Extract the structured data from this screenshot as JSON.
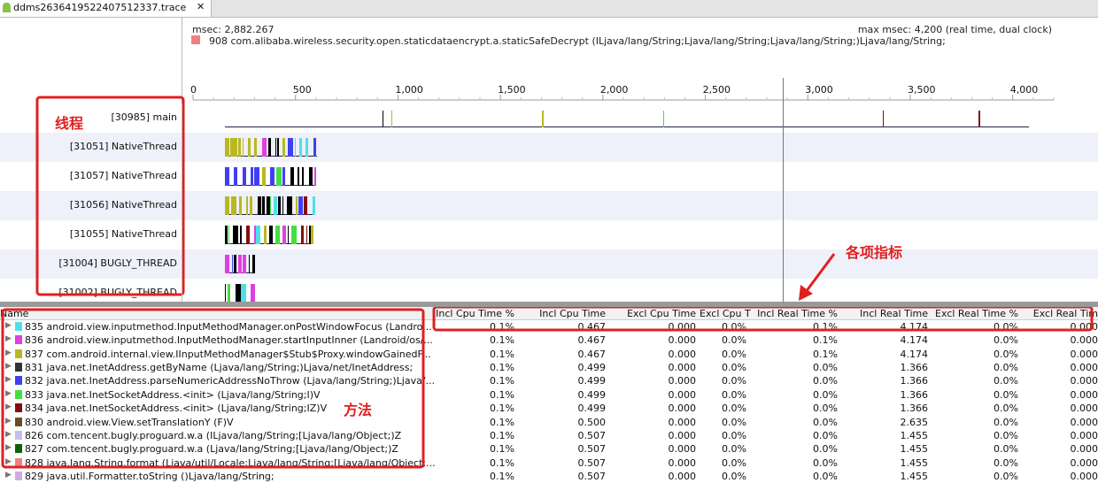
{
  "tab": {
    "title": "ddms2636419522407512337.trace"
  },
  "header": {
    "msec": "msec: 2,882.267",
    "max_msec": "max msec: 4,200 (real time, dual clock)",
    "selected_method": "908 com.alibaba.wireless.security.open.staticdataencrypt.a.staticSafeDecrypt (ILjava/lang/String;Ljava/lang/String;Ljava/lang/String;)Ljava/lang/String;",
    "selected_color": "#f08080"
  },
  "timeline": {
    "range": [
      0,
      4200
    ],
    "ticks": [
      0,
      500,
      {
        "value": 1000,
        "label": "1,000"
      },
      {
        "value": 1500,
        "label": "1,500"
      },
      {
        "value": 2000,
        "label": "2,000"
      },
      {
        "value": 2500,
        "label": "2,500"
      },
      {
        "value": 3000,
        "label": "3,000"
      },
      {
        "value": 3500,
        "label": "3,500"
      },
      {
        "value": 4000,
        "label": "4,000"
      }
    ]
  },
  "threads": [
    "[30985] main",
    "[31051] NativeThread",
    "[31057] NativeThread",
    "[31056] NativeThread",
    "[31055] NativeThread",
    "[31004] BUGLY_THREAD",
    "[31002] BUGLY_THREAD"
  ],
  "annotations": {
    "threads": "线程",
    "columns": "各项指标",
    "methods": "方法"
  },
  "table": {
    "columns": [
      "Name",
      "Incl Cpu Time %",
      "Incl Cpu Time",
      "Excl Cpu Time",
      "Excl Cpu T",
      "Incl Real Time %",
      "Incl Real Time",
      "Excl Real Time %",
      "Excl Real Tim"
    ],
    "rows": [
      {
        "color": "#4ee0e8",
        "cells": [
          "835 android.view.inputmethod.InputMethodManager.onPostWindowFocus (Landro...",
          "0.1%",
          "0.467",
          "0.000",
          "0.0%",
          "0.1%",
          "4.174",
          "0.0%",
          "0.000"
        ]
      },
      {
        "color": "#e040e0",
        "cells": [
          "836 android.view.inputmethod.InputMethodManager.startInputInner (Landroid/os/...",
          "0.1%",
          "0.467",
          "0.000",
          "0.0%",
          "0.1%",
          "4.174",
          "0.0%",
          "0.000"
        ]
      },
      {
        "color": "#b8b820",
        "cells": [
          "837 com.android.internal.view.IInputMethodManager$Stub$Proxy.windowGainedF...",
          "0.1%",
          "0.467",
          "0.000",
          "0.0%",
          "0.1%",
          "4.174",
          "0.0%",
          "0.000"
        ]
      },
      {
        "color": "#333333",
        "cells": [
          "831 java.net.InetAddress.getByName (Ljava/lang/String;)Ljava/net/InetAddress;",
          "0.1%",
          "0.499",
          "0.000",
          "0.0%",
          "0.0%",
          "1.366",
          "0.0%",
          "0.000"
        ]
      },
      {
        "color": "#4040f0",
        "cells": [
          "832 java.net.InetAddress.parseNumericAddressNoThrow (Ljava/lang/String;)Ljava/...",
          "0.1%",
          "0.499",
          "0.000",
          "0.0%",
          "0.0%",
          "1.366",
          "0.0%",
          "0.000"
        ]
      },
      {
        "color": "#40e040",
        "cells": [
          "833 java.net.InetSocketAddress.<init> (Ljava/lang/String;I)V",
          "0.1%",
          "0.499",
          "0.000",
          "0.0%",
          "0.0%",
          "1.366",
          "0.0%",
          "0.000"
        ]
      },
      {
        "color": "#801010",
        "cells": [
          "834 java.net.InetSocketAddress.<init> (Ljava/lang/String;IZ)V",
          "0.1%",
          "0.499",
          "0.000",
          "0.0%",
          "0.0%",
          "1.366",
          "0.0%",
          "0.000"
        ]
      },
      {
        "color": "#6b4a2a",
        "cells": [
          "830 android.view.View.setTranslationY (F)V",
          "0.1%",
          "0.500",
          "0.000",
          "0.0%",
          "0.0%",
          "2.635",
          "0.0%",
          "0.000"
        ]
      },
      {
        "color": "#c0c0f0",
        "cells": [
          "826 com.tencent.bugly.proguard.w.a (ILjava/lang/String;[Ljava/lang/Object;)Z",
          "0.1%",
          "0.507",
          "0.000",
          "0.0%",
          "0.0%",
          "1.455",
          "0.0%",
          "0.000"
        ]
      },
      {
        "color": "#0a6010",
        "cells": [
          "827 com.tencent.bugly.proguard.w.a (Ljava/lang/String;[Ljava/lang/Object;)Z",
          "0.1%",
          "0.507",
          "0.000",
          "0.0%",
          "0.0%",
          "1.455",
          "0.0%",
          "0.000"
        ]
      },
      {
        "color": "#f08080",
        "cells": [
          "828 java.lang.String.format (Ljava/util/Locale;Ljava/lang/String;[Ljava/lang/Object;...",
          "0.1%",
          "0.507",
          "0.000",
          "0.0%",
          "0.0%",
          "1.455",
          "0.0%",
          "0.000"
        ]
      },
      {
        "color": "#c8b0e0",
        "cells": [
          "829 java.util.Formatter.toString ()Ljava/lang/String;",
          "0.1%",
          "0.507",
          "0.000",
          "0.0%",
          "0.0%",
          "1.455",
          "0.0%",
          "0.000"
        ]
      }
    ]
  }
}
